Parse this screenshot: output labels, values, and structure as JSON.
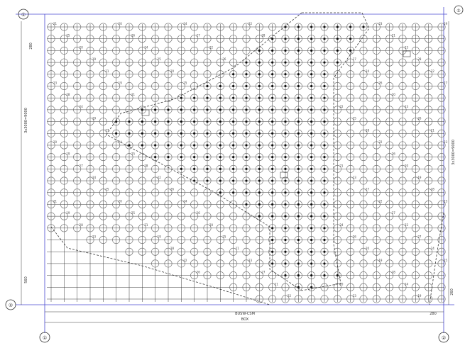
{
  "drawing": {
    "title": "",
    "axis_labels": {
      "corner_top_left": "①",
      "corner_bottom_left": "②",
      "bottom_left": "①",
      "bottom_right": "②",
      "right_top": "①"
    },
    "dimensions": {
      "bottom_total": "BOX",
      "bottom_segment": "BUSW-CSM",
      "left_vertical": "3x3000=9000",
      "right_vertical": "3x3000=9000",
      "left_small_top": "280",
      "left_small_bottom": "560",
      "right_small": "260",
      "bottom_right_small": "280"
    },
    "pile_labels": [
      "21",
      "20",
      "24",
      "22",
      "23",
      "19",
      "25",
      "26",
      "27",
      "28"
    ],
    "colors": {
      "line": "#3a3a3a",
      "pile": "#6b6b6b",
      "dot": "#111111",
      "axis_blue": "#4a4ad0"
    }
  }
}
